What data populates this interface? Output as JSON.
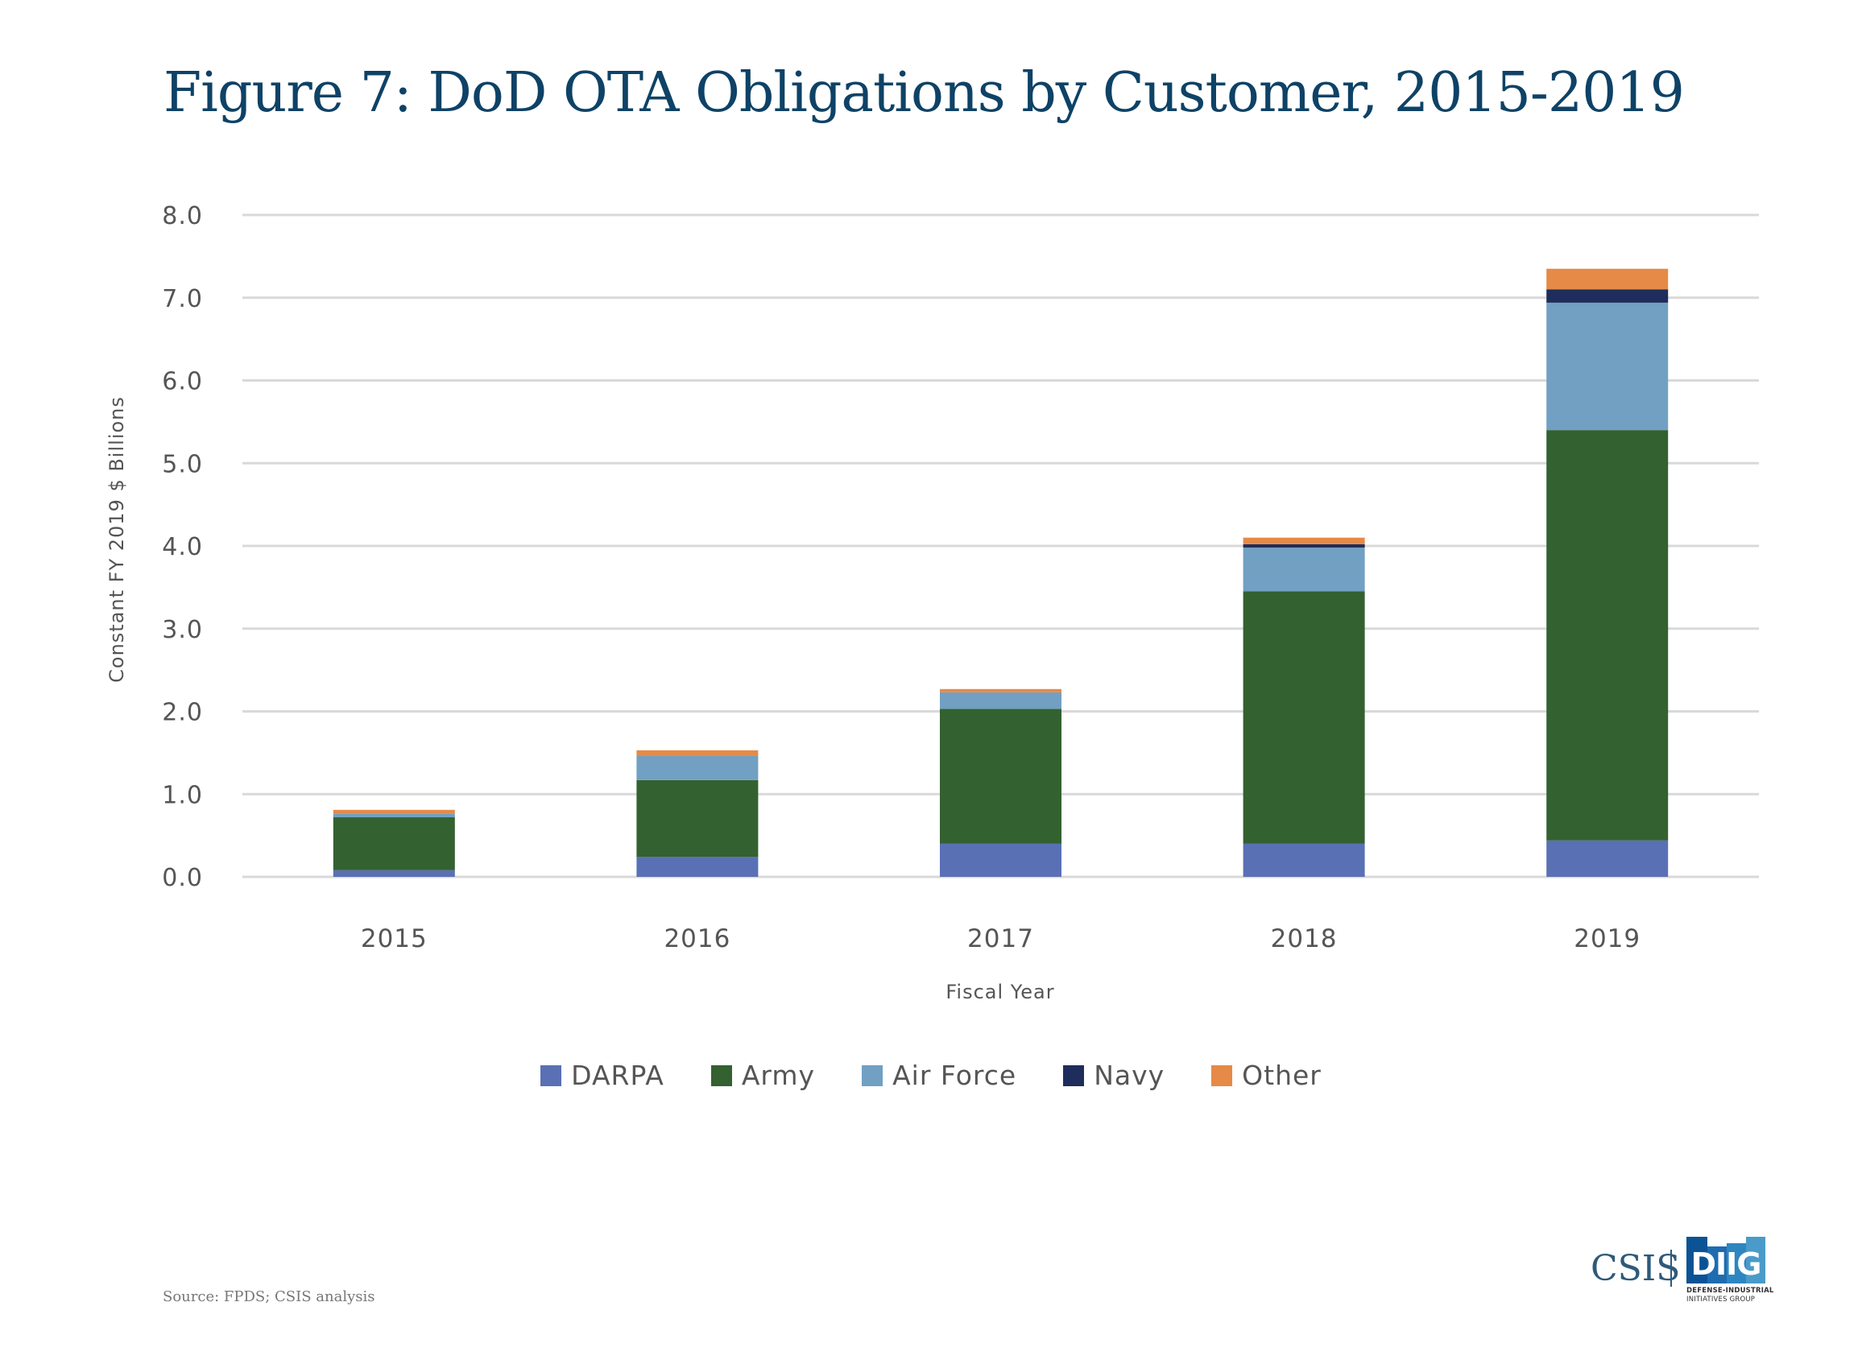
{
  "title": "Figure 7: DoD OTA Obligations by Customer, 2015-2019",
  "source": "Source: FPDS; CSIS analysis",
  "logo": {
    "csis": "CSIS",
    "diig": "DIIG",
    "diig_line1": "DEFENSE-INDUSTRIAL",
    "diig_line2": "INITIATIVES GROUP",
    "colors": [
      "#0B5394",
      "#1E6CAF",
      "#2E86C1",
      "#4A9BC9"
    ]
  },
  "chart_data": {
    "type": "bar",
    "stacked": true,
    "title": "Figure 7: DoD OTA Obligations by Customer, 2015-2019",
    "xlabel": "Fiscal Year",
    "ylabel": "Constant FY 2019 $ Billions",
    "ylim": [
      0,
      8
    ],
    "yticks": [
      0,
      1,
      2,
      3,
      4,
      5,
      6,
      7,
      8
    ],
    "ytick_labels": [
      "0.0",
      "1.0",
      "2.0",
      "3.0",
      "4.0",
      "5.0",
      "6.0",
      "7.0",
      "8.0"
    ],
    "grid": true,
    "legend_position": "bottom",
    "categories": [
      "2015",
      "2016",
      "2017",
      "2018",
      "2019"
    ],
    "series": [
      {
        "name": "DARPA",
        "color": "#5A70B5",
        "values": [
          0.08,
          0.24,
          0.4,
          0.4,
          0.44
        ]
      },
      {
        "name": "Army",
        "color": "#336130",
        "values": [
          0.64,
          0.93,
          1.63,
          3.05,
          4.96
        ]
      },
      {
        "name": "Air Force",
        "color": "#71A0C3",
        "values": [
          0.04,
          0.29,
          0.2,
          0.53,
          1.54
        ]
      },
      {
        "name": "Navy",
        "color": "#1E2D5B",
        "values": [
          0.0,
          0.0,
          0.0,
          0.04,
          0.16
        ]
      },
      {
        "name": "Other",
        "color": "#E58A47",
        "values": [
          0.05,
          0.07,
          0.04,
          0.08,
          0.25
        ]
      }
    ]
  }
}
